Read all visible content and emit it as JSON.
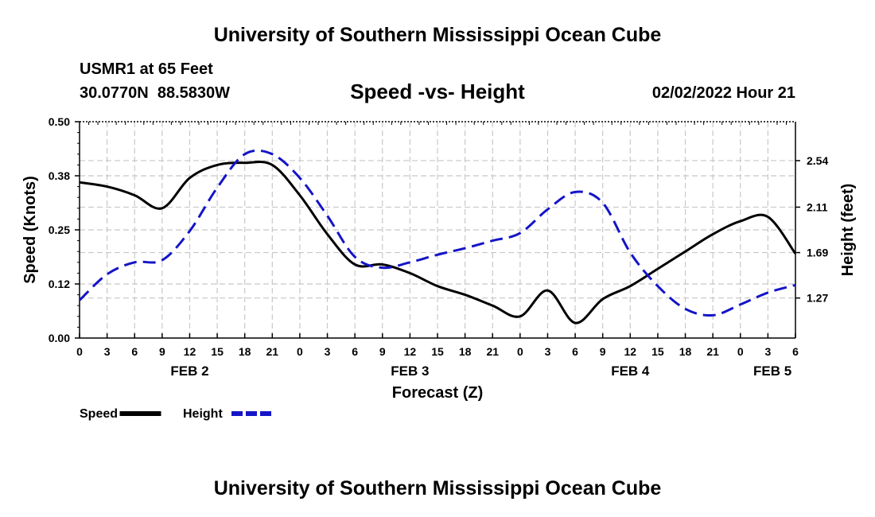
{
  "header": {
    "title": "University of Southern Mississippi Ocean Cube",
    "station": "USMR1 at 65 Feet",
    "coordinates": "30.0770N  88.5830W",
    "subtitle": "Speed -vs- Height",
    "datetime": "02/02/2022 Hour 21"
  },
  "footer": {
    "title": "University of Southern Mississippi Ocean Cube"
  },
  "chart_data": {
    "type": "line",
    "title": "Speed -vs- Height",
    "xlabel": "Forecast (Z)",
    "ylabel": "Speed (Knots)",
    "y2label": "Height (feet)",
    "xlim": [
      0,
      78
    ],
    "ylim": [
      0,
      0.5
    ],
    "y2lim": [
      0.9,
      2.9
    ],
    "x_ticks": [
      0,
      3,
      6,
      9,
      12,
      15,
      18,
      21,
      24,
      27,
      30,
      33,
      36,
      39,
      42,
      45,
      48,
      51,
      54,
      57,
      60,
      63,
      66,
      69,
      72,
      75,
      78
    ],
    "x_tick_labels": [
      "0",
      "3",
      "6",
      "9",
      "12",
      "15",
      "18",
      "21",
      "0",
      "3",
      "6",
      "9",
      "12",
      "15",
      "18",
      "21",
      "0",
      "3",
      "6",
      "9",
      "12",
      "15",
      "18",
      "21",
      "0",
      "3",
      "6"
    ],
    "date_labels": [
      {
        "x": 12,
        "label": "FEB 2"
      },
      {
        "x": 36,
        "label": "FEB 3"
      },
      {
        "x": 60,
        "label": "FEB 4"
      },
      {
        "x": 75.5,
        "label": "FEB 5"
      }
    ],
    "y_ticks": [
      0,
      0.125,
      0.25,
      0.375,
      0.5
    ],
    "y_tick_labels": [
      "0.00",
      "0.12",
      "0.25",
      "0.38",
      "0.50"
    ],
    "y2_ticks": [
      1.27,
      1.69,
      2.11,
      2.54
    ],
    "y2_tick_labels": [
      "1.27",
      "1.69",
      "2.11",
      "2.54"
    ],
    "grid": true,
    "legend": [
      {
        "name": "Speed",
        "color": "#000000",
        "style": "solid"
      },
      {
        "name": "Height",
        "color": "#1414c8",
        "style": "dashed"
      }
    ],
    "series": [
      {
        "name": "Speed",
        "axis": "left",
        "color": "#000000",
        "x": [
          0,
          3,
          6,
          9,
          12,
          15,
          18,
          21,
          24,
          27,
          30,
          33,
          36,
          39,
          42,
          45,
          48,
          51,
          54,
          57,
          60,
          63,
          66,
          69,
          72,
          75,
          78
        ],
        "y": [
          0.36,
          0.35,
          0.33,
          0.3,
          0.37,
          0.4,
          0.405,
          0.4,
          0.33,
          0.24,
          0.17,
          0.17,
          0.15,
          0.12,
          0.1,
          0.075,
          0.05,
          0.11,
          0.035,
          0.09,
          0.12,
          0.16,
          0.2,
          0.24,
          0.27,
          0.28,
          0.195
        ]
      },
      {
        "name": "Height",
        "axis": "right",
        "color": "#1414c8",
        "x": [
          0,
          3,
          6,
          9,
          12,
          15,
          18,
          21,
          24,
          27,
          30,
          33,
          36,
          39,
          42,
          45,
          48,
          51,
          54,
          57,
          60,
          63,
          66,
          69,
          72,
          75,
          78
        ],
        "y": [
          1.25,
          1.49,
          1.6,
          1.62,
          1.89,
          2.29,
          2.6,
          2.6,
          2.38,
          2.03,
          1.65,
          1.55,
          1.6,
          1.67,
          1.73,
          1.8,
          1.87,
          2.09,
          2.25,
          2.15,
          1.69,
          1.38,
          1.17,
          1.11,
          1.21,
          1.32,
          1.39
        ]
      }
    ]
  }
}
